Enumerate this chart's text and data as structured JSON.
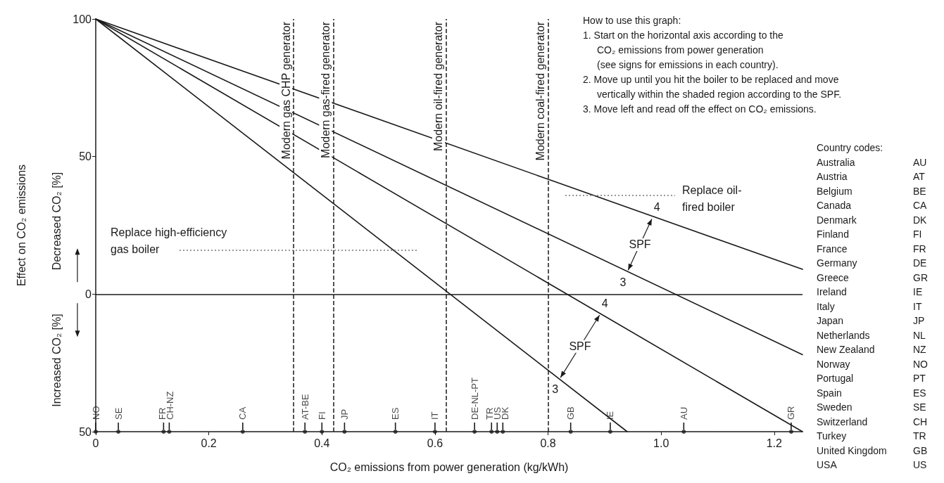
{
  "chart_data": {
    "type": "line",
    "xlabel": "CO₂ emissions from power generation (kg/kWh)",
    "ylabel": "Effect on CO₂ emissions",
    "xlim": [
      0,
      1.25
    ],
    "xticks": [
      0,
      0.2,
      0.4,
      0.6,
      0.8,
      {
        "value": 1,
        "label": "1.0"
      },
      1.2
    ],
    "ylim": [
      -50,
      100
    ],
    "yticks": [
      {
        "value": -50,
        "label": "50"
      },
      0,
      50,
      100
    ],
    "marker": "none",
    "line_style": "solid",
    "series": [
      {
        "color": "#1a1a1a",
        "x": [
          0,
          1.25
        ],
        "values": [
          100,
          9
        ]
      },
      {
        "color": "#1a1a1a",
        "x": [
          0,
          1.25
        ],
        "values": [
          100,
          -22
        ]
      },
      {
        "color": "#1a1a1a",
        "x": [
          0,
          1.25
        ],
        "values": [
          100,
          -50
        ]
      },
      {
        "color": "#1a1a1a",
        "x": [
          0,
          0.94
        ],
        "values": [
          100,
          -50
        ]
      },
      {
        "type": "scatter",
        "color": "#1a1a1a",
        "x": [
          0,
          0.04,
          0.12,
          0.13,
          0.26,
          0.37,
          0.4,
          0.44,
          0.53,
          0.6,
          0.67,
          0.7,
          0.71,
          0.72,
          0.84,
          0.91,
          1.04,
          1.23
        ],
        "values": [
          -50,
          -50,
          -50,
          -50,
          -50,
          -50,
          -50,
          -50,
          -50,
          -50,
          -50,
          -50,
          -50,
          -50,
          -50,
          -50,
          -50,
          -50
        ],
        "value_labels": [
          "NO",
          "SE",
          "FR",
          "CH-NZ",
          "CA",
          "AT-BE",
          "FI",
          "JP",
          "ES",
          "IT",
          "DE-NL-PT",
          "TR",
          "US",
          "DK",
          "GB",
          "IE",
          "AU",
          "GR"
        ]
      }
    ],
    "ref_lines": [
      {
        "axis": "x",
        "value": 0.35,
        "label": "Modern gas CHP generator",
        "line_style": "dashed"
      },
      {
        "axis": "x",
        "value": 0.42,
        "label": "Modern gas-fired generator",
        "line_style": "dashed"
      },
      {
        "axis": "x",
        "value": 0.62,
        "label": "Modern oil-fired generator",
        "line_style": "dashed"
      },
      {
        "axis": "x",
        "value": 0.8,
        "label": "Modern coal-fired generator",
        "line_style": "dashed"
      },
      {
        "axis": "y",
        "value": 0
      }
    ],
    "annotations": [
      "How to use this graph:\n1. Start on the horizontal axis according to the\nCO₂ emissions from power generation\n(see signs for emissions in each country).\n2. Move up until you hit the boiler to be replaced and move\nvertically within the shaded region according to the SPF.\n3. Move left and read off the effect on CO₂ emissions.",
      "Country codes:\nAustralia\tAU\nAustria\tAT\nBelgium\tBE\nCanada\tCA\nDenmark\tDK\nFinland\tFI\nFrance\tFR\nGermany\tDE\nGreece\tGR\nIreland\tIE\nItaly\tIT\nJapan\tJP\nNetherlands\tNL\nNew Zealand\tNZ\nNorway\tNO\nPortugal\tPT\nSpain\tES\nSweden\tSE\nSwitzerland\tCH\nTurkey\tTR\nUnited Kingdom\tGB\nUSA\tUS",
      "Decreased CO₂ [%]",
      "Increased CO₂ [%]",
      "Replace oil-\nfired boiler",
      "Replace high-efficiency\ngas boiler",
      "SPF",
      {
        "text": "3",
        "x": 0.94,
        "y": 8
      },
      {
        "text": "4",
        "x": 0.985,
        "y": 28
      },
      "SPF",
      {
        "text": "3",
        "x": 0.82,
        "y": -31
      },
      {
        "text": "4",
        "x": 0.893,
        "y": -7
      }
    ]
  }
}
